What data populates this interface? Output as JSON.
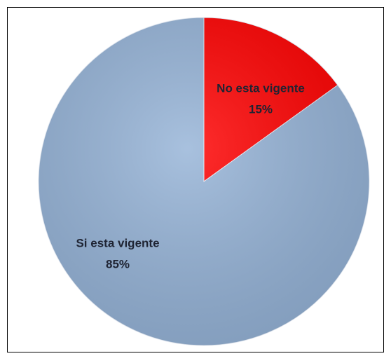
{
  "chart_data": {
    "type": "pie",
    "categories": [
      "No esta vigente",
      "Si esta vigente"
    ],
    "values": [
      15,
      85
    ],
    "value_labels": [
      "15%",
      "85%"
    ],
    "colors": [
      "#ff0000",
      "#95b3d7"
    ]
  }
}
